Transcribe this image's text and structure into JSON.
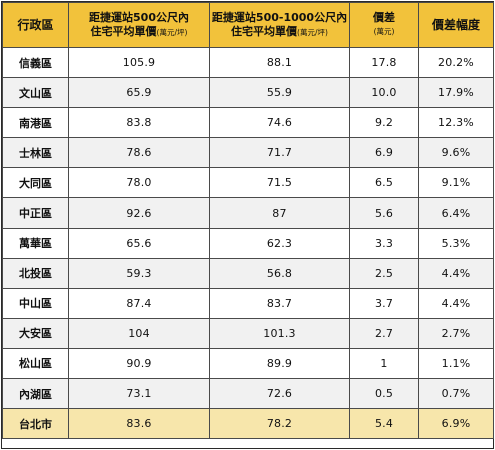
{
  "headers": {
    "district": "行政區",
    "near_main": "距捷運站500公尺內",
    "near_sub_main": "住宅平均單價",
    "near_unit": "(萬元/坪)",
    "far_main": "距捷運站500-1000公尺內",
    "far_sub_main": "住宅平均單價",
    "far_unit": "(萬元/坪)",
    "diff_main": "價差",
    "diff_unit": "(萬元)",
    "pct": "價差幅度"
  },
  "rows": [
    {
      "district": "信義區",
      "near": "105.9",
      "far": "88.1",
      "diff": "17.8",
      "pct": "20.2%"
    },
    {
      "district": "文山區",
      "near": "65.9",
      "far": "55.9",
      "diff": "10.0",
      "pct": "17.9%"
    },
    {
      "district": "南港區",
      "near": "83.8",
      "far": "74.6",
      "diff": "9.2",
      "pct": "12.3%"
    },
    {
      "district": "士林區",
      "near": "78.6",
      "far": "71.7",
      "diff": "6.9",
      "pct": "9.6%"
    },
    {
      "district": "大同區",
      "near": "78.0",
      "far": "71.5",
      "diff": "6.5",
      "pct": "9.1%"
    },
    {
      "district": "中正區",
      "near": "92.6",
      "far": "87",
      "diff": "5.6",
      "pct": "6.4%"
    },
    {
      "district": "萬華區",
      "near": "65.6",
      "far": "62.3",
      "diff": "3.3",
      "pct": "5.3%"
    },
    {
      "district": "北投區",
      "near": "59.3",
      "far": "56.8",
      "diff": "2.5",
      "pct": "4.4%"
    },
    {
      "district": "中山區",
      "near": "87.4",
      "far": "83.7",
      "diff": "3.7",
      "pct": "4.4%"
    },
    {
      "district": "大安區",
      "near": "104",
      "far": "101.3",
      "diff": "2.7",
      "pct": "2.7%"
    },
    {
      "district": "松山區",
      "near": "90.9",
      "far": "89.9",
      "diff": "1",
      "pct": "1.1%"
    },
    {
      "district": "內湖區",
      "near": "73.1",
      "far": "72.6",
      "diff": "0.5",
      "pct": "0.7%"
    }
  ],
  "total": {
    "district": "台北市",
    "near": "83.6",
    "far": "78.2",
    "diff": "5.4",
    "pct": "6.9%"
  },
  "colors": {
    "header": "#f2c23b",
    "stripe": "#f1f1f1",
    "total": "#f7e6ab"
  }
}
